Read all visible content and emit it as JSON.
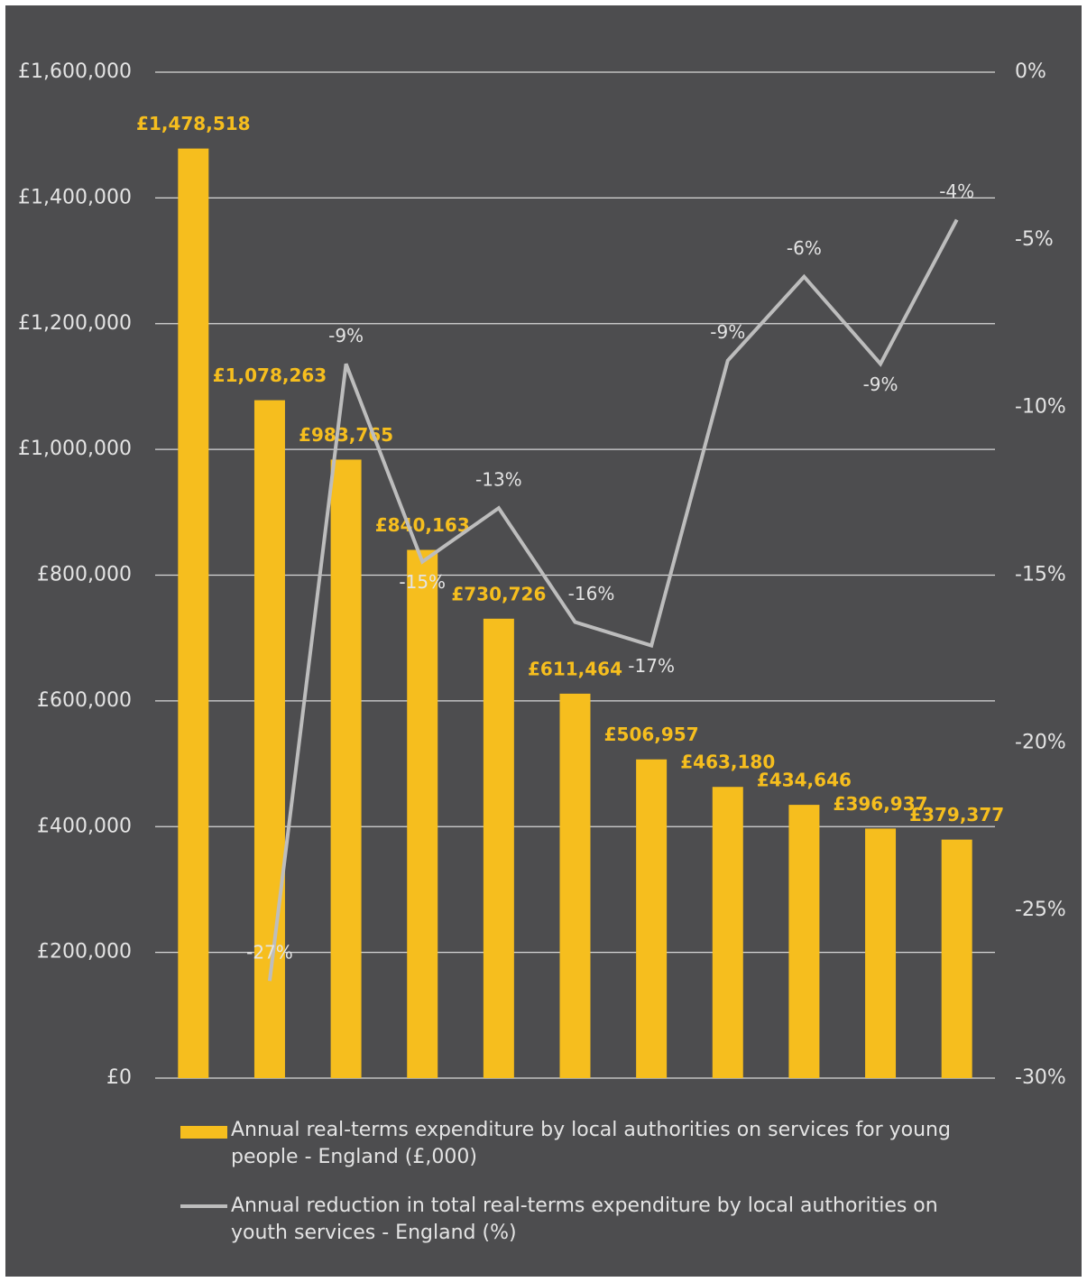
{
  "chart_data": {
    "type": "bar",
    "categories": [
      null,
      null,
      null,
      null,
      null,
      null,
      null,
      null,
      null,
      null,
      null
    ],
    "series": [
      {
        "name": "Annual real-terms expenditure by local authorities on services for young people - England (£,000)",
        "color": "#f6be1e",
        "values": [
          1478518,
          1078263,
          983765,
          840163,
          730726,
          611464,
          506957,
          463180,
          434646,
          396937,
          379377
        ],
        "value_labels": [
          "£1,478,518",
          "£1,078,263",
          "£983,765",
          "£840,163",
          "£730,726",
          "£611,464",
          "£506,957",
          "£463,180",
          "£434,646",
          "£396,937",
          "£379,377"
        ]
      },
      {
        "name": "Annual reduction in total real-terms expenditure by local authorities on youth services - England (%)",
        "color": "#bdbdbd",
        "type": "line",
        "axis": "y2",
        "values": [
          null,
          -27.1,
          -8.7,
          -14.6,
          -13.0,
          -16.4,
          -17.1,
          -8.6,
          -6.1,
          -8.7,
          -4.4
        ],
        "value_labels": [
          null,
          "-27%",
          "-9%",
          "-15%",
          "-13%",
          "-16%",
          "-17%",
          "-9%",
          "-6%",
          "-9%",
          "-4%"
        ]
      }
    ],
    "ylim": [
      0,
      1600000
    ],
    "yticks": [
      {
        "value": 0,
        "label": "£0"
      },
      {
        "value": 200000,
        "label": "£200,000"
      },
      {
        "value": 400000,
        "label": "£400,000"
      },
      {
        "value": 600000,
        "label": "£600,000"
      },
      {
        "value": 800000,
        "label": "£800,000"
      },
      {
        "value": 1000000,
        "label": "£1,000,000"
      },
      {
        "value": 1200000,
        "label": "£1,200,000"
      },
      {
        "value": 1400000,
        "label": "£1,400,000"
      },
      {
        "value": 1600000,
        "label": "£1,600,000"
      }
    ],
    "y2lim": [
      -30,
      0
    ],
    "y2ticks": [
      {
        "value": 0,
        "label": "0%"
      },
      {
        "value": -5,
        "label": "-5%"
      },
      {
        "value": -10,
        "label": "-10%"
      },
      {
        "value": -15,
        "label": "-15%"
      },
      {
        "value": -20,
        "label": "-20%"
      },
      {
        "value": -25,
        "label": "-25%"
      },
      {
        "value": -30,
        "label": "-30%"
      }
    ],
    "grid": true
  }
}
